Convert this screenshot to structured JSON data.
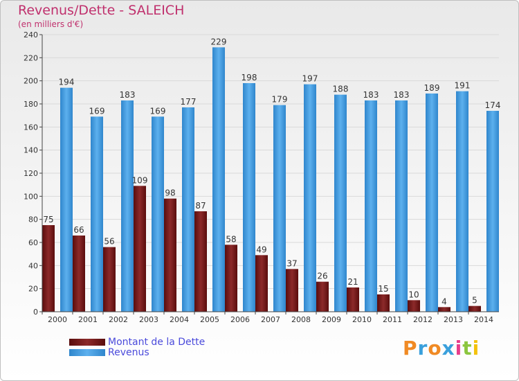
{
  "title": "Revenus/Dette - SALEICH",
  "subtitle": "(en milliers d'€)",
  "logo": {
    "text": "Proxiti",
    "letters": [
      {
        "ch": "P",
        "color": "#f08a24"
      },
      {
        "ch": "r",
        "color": "#3aa0dc"
      },
      {
        "ch": "o",
        "color": "#f08a24"
      },
      {
        "ch": "x",
        "color": "#3aa0dc"
      },
      {
        "ch": "i",
        "color": "#e83e8c"
      },
      {
        "ch": "t",
        "color": "#8cc63f"
      },
      {
        "ch": "i",
        "color": "#f4c20d"
      }
    ]
  },
  "chart_data": {
    "type": "bar",
    "categories": [
      "2000",
      "2001",
      "2002",
      "2003",
      "2004",
      "2005",
      "2006",
      "2007",
      "2008",
      "2009",
      "2010",
      "2011",
      "2012",
      "2013",
      "2014"
    ],
    "series": [
      {
        "name": "Montant de la Dette",
        "color": "#7a1a1a",
        "values": [
          75,
          66,
          56,
          109,
          98,
          87,
          58,
          49,
          37,
          26,
          21,
          15,
          10,
          4,
          5
        ]
      },
      {
        "name": "Revenus",
        "color": "#3d97db",
        "values": [
          194,
          169,
          183,
          169,
          177,
          229,
          198,
          179,
          197,
          188,
          183,
          183,
          189,
          191,
          174
        ]
      }
    ],
    "ylim": [
      0,
      240
    ],
    "yticks": [
      0,
      20,
      40,
      60,
      80,
      100,
      120,
      140,
      160,
      180,
      200,
      220,
      240
    ],
    "grid": true,
    "legend": "bottom-left"
  }
}
